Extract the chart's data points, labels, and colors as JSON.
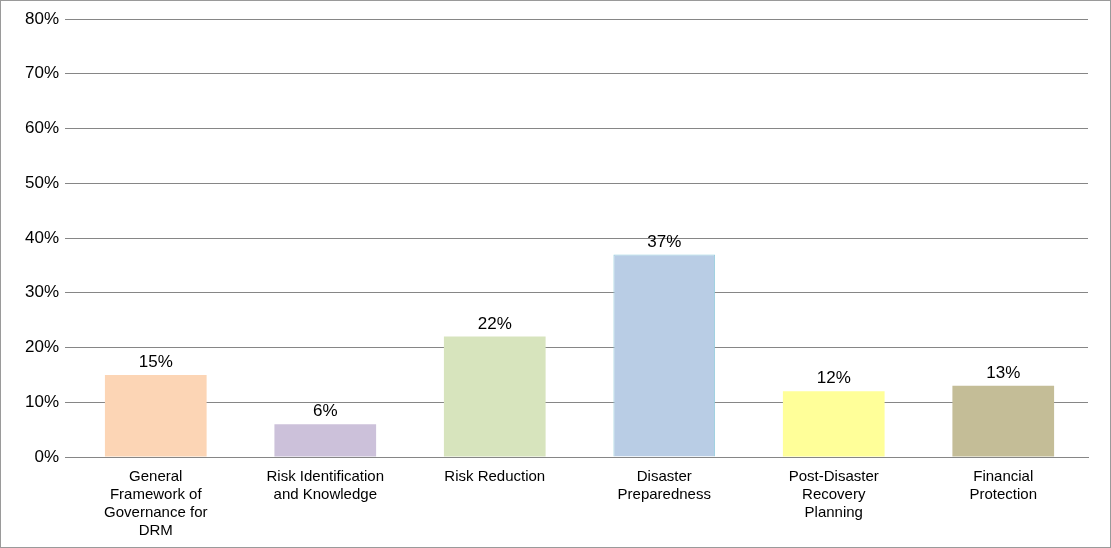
{
  "chart_data": {
    "type": "bar",
    "categories": [
      "General Framework of Governance for DRM",
      "Risk Identification and Knowledge",
      "Risk Reduction",
      "Disaster Preparedness",
      "Post-Disaster Recovery Planning",
      "Financial Protection"
    ],
    "values": [
      15,
      6,
      22,
      37,
      12,
      13
    ],
    "colors": [
      "#fcd5b5",
      "#ccc1da",
      "#d7e4bd",
      "#b9cde5",
      "#ffff99",
      "#c4bd97"
    ],
    "value_labels": [
      "15%",
      "6%",
      "22%",
      "37%",
      "12%",
      "13%"
    ],
    "ylim": [
      0,
      80
    ],
    "yticks": [
      {
        "value": 0,
        "label": "0%"
      },
      {
        "value": 10,
        "label": "10%"
      },
      {
        "value": 20,
        "label": "20%"
      },
      {
        "value": 30,
        "label": "30%"
      },
      {
        "value": 40,
        "label": "40%"
      },
      {
        "value": 50,
        "label": "50%"
      },
      {
        "value": 60,
        "label": "60%"
      },
      {
        "value": 70,
        "label": "70%"
      },
      {
        "value": 80,
        "label": "80%"
      }
    ],
    "grid": "y",
    "legend": false
  }
}
